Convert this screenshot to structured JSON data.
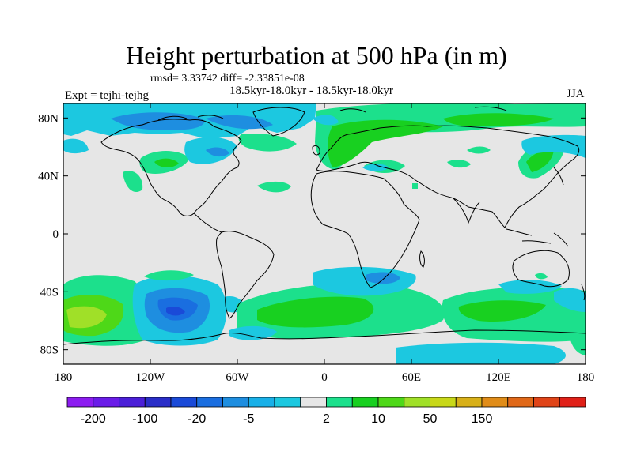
{
  "figure": {
    "title": "Height perturbation at 500 hPa (in m)",
    "stats": "rmsd= 3.33742 diff= -2.33851e-08",
    "experiment": "Expt = tejhi-tejhg",
    "period": "18.5kyr-18.0kyr - 18.5kyr-18.0kyr",
    "season": "JJA"
  },
  "map": {
    "projection": "cylindrical equidistant",
    "lon_range": [
      -180,
      180
    ],
    "lat_range": [
      -90,
      90
    ],
    "coastlines": true,
    "background_color": "#e6e6e6",
    "lat_ticks": [
      {
        "lat": 80,
        "label": "80N"
      },
      {
        "lat": 40,
        "label": "40N"
      },
      {
        "lat": 0,
        "label": "0"
      },
      {
        "lat": -40,
        "label": "40S"
      },
      {
        "lat": -80,
        "label": "80S"
      }
    ],
    "lon_ticks": [
      {
        "lon": -180,
        "label": "180"
      },
      {
        "lon": -120,
        "label": "120W"
      },
      {
        "lon": -60,
        "label": "60W"
      },
      {
        "lon": 0,
        "label": "0"
      },
      {
        "lon": 60,
        "label": "60E"
      },
      {
        "lon": 120,
        "label": "120E"
      },
      {
        "lon": 180,
        "label": "180"
      }
    ]
  },
  "colorbar": {
    "colors": [
      "#8c1cf0",
      "#6a1ce8",
      "#4b1fd8",
      "#2a2ec8",
      "#1a4ad8",
      "#1a6ee0",
      "#1e8ee0",
      "#18b0e8",
      "#1cc8e0",
      "#e6e6e6",
      "#1ce08c",
      "#18d020",
      "#4ed818",
      "#a0e028",
      "#c8d818",
      "#d8b018",
      "#e08c18",
      "#e06818",
      "#e04418",
      "#e02018"
    ],
    "labels": [
      {
        "index": 1,
        "text": "-200"
      },
      {
        "index": 3,
        "text": "-100"
      },
      {
        "index": 5,
        "text": "-20"
      },
      {
        "index": 7,
        "text": "-5"
      },
      {
        "index": 10,
        "text": "2"
      },
      {
        "index": 12,
        "text": "10"
      },
      {
        "index": 14,
        "text": "50"
      },
      {
        "index": 16,
        "text": "150"
      }
    ]
  }
}
